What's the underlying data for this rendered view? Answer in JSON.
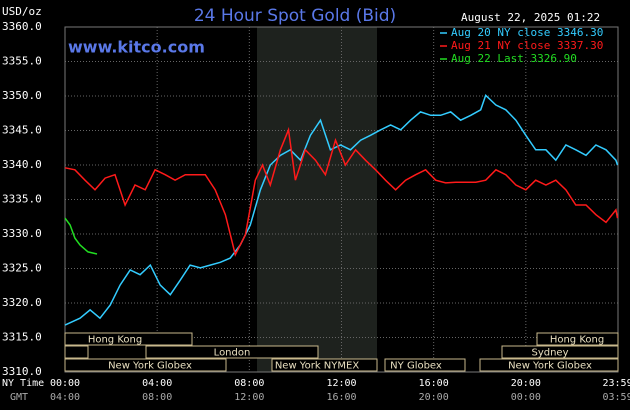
{
  "chart_data": {
    "type": "line",
    "title": "24 Hour Spot Gold (Bid)",
    "website": "www.kitco.com",
    "timestamp": "August 22, 2025 01:22",
    "y_axis_label": "USD/oz",
    "x_axis_label": "NY Time",
    "x2_axis_label": "GMT",
    "xlim": [
      0,
      24
    ],
    "ylim": [
      3310,
      3360
    ],
    "xticks": [
      {
        "value": 0,
        "label": "00:00"
      },
      {
        "value": 4,
        "label": "04:00"
      },
      {
        "value": 8,
        "label": "08:00"
      },
      {
        "value": 12,
        "label": "12:00"
      },
      {
        "value": 16,
        "label": "16:00"
      },
      {
        "value": 20,
        "label": "20:00"
      },
      {
        "value": 23.98,
        "label": "23:59"
      }
    ],
    "x2ticks": [
      {
        "value": 0,
        "label": "04:00"
      },
      {
        "value": 4,
        "label": "08:00"
      },
      {
        "value": 8,
        "label": "12:00"
      },
      {
        "value": 12,
        "label": "16:00"
      },
      {
        "value": 16,
        "label": "20:00"
      },
      {
        "value": 20,
        "label": "00:00"
      },
      {
        "value": 23.98,
        "label": "03:59"
      }
    ],
    "yticks": [
      {
        "value": 3310,
        "label": "3310.0"
      },
      {
        "value": 3315,
        "label": "3315.0"
      },
      {
        "value": 3320,
        "label": "3320.0"
      },
      {
        "value": 3325,
        "label": "3325.0"
      },
      {
        "value": 3330,
        "label": "3330.0"
      },
      {
        "value": 3335,
        "label": "3335.0"
      },
      {
        "value": 3340,
        "label": "3340.0"
      },
      {
        "value": 3345,
        "label": "3345.0"
      },
      {
        "value": 3350,
        "label": "3350.0"
      },
      {
        "value": 3355,
        "label": "3355.0"
      },
      {
        "value": 3360,
        "label": "3360.0"
      }
    ],
    "grid": true,
    "legend": "top-right",
    "sessions": [
      "Hong Kong",
      "Hong Kong",
      "London",
      "Sydney",
      "New York Globex",
      "New York NYMEX",
      "NY Globex",
      "New York Globex"
    ],
    "series": [
      {
        "name": "Aug 20 NY close 3346.30",
        "color": "#33ccff",
        "x": [
          0,
          0.65,
          1.09,
          1.52,
          1.96,
          2.39,
          2.83,
          3.26,
          3.7,
          4.13,
          4.57,
          5,
          5.43,
          5.87,
          6.3,
          6.74,
          7.17,
          7.61,
          8.04,
          8.48,
          8.91,
          9.35,
          9.78,
          10.22,
          10.65,
          11.09,
          11.52,
          11.96,
          12.39,
          12.83,
          13.26,
          13.7,
          14.13,
          14.57,
          15,
          15.43,
          15.87,
          16.3,
          16.74,
          17.17,
          17.61,
          18.04,
          18.26,
          18.7,
          19.13,
          19.57,
          20,
          20.43,
          20.87,
          21.3,
          21.74,
          22.17,
          22.61,
          23.04,
          23.48,
          23.91,
          23.98
        ],
        "values": [
          3316.8,
          3317.8,
          3319.0,
          3317.8,
          3319.7,
          3322.6,
          3324.8,
          3324.1,
          3325.5,
          3322.6,
          3321.2,
          3323.3,
          3325.5,
          3325.1,
          3325.5,
          3325.9,
          3326.5,
          3328.4,
          3331.3,
          3336.4,
          3340.0,
          3341.4,
          3342.2,
          3340.7,
          3344.3,
          3346.5,
          3342.2,
          3342.9,
          3342.2,
          3343.6,
          3344.3,
          3345.1,
          3345.8,
          3345.1,
          3346.5,
          3347.7,
          3347.2,
          3347.2,
          3347.7,
          3346.5,
          3347.2,
          3348.0,
          3350.1,
          3348.7,
          3348.0,
          3346.5,
          3344.3,
          3342.2,
          3342.2,
          3340.7,
          3342.9,
          3342.2,
          3341.4,
          3342.9,
          3342.2,
          3340.7,
          3340.0
        ]
      },
      {
        "name": "Aug 21 NY close 3337.30",
        "color": "#ff1a1a",
        "x": [
          0,
          0.43,
          0.87,
          1.3,
          1.74,
          2.17,
          2.61,
          3.04,
          3.48,
          3.91,
          4.35,
          4.78,
          5.22,
          5.65,
          6.09,
          6.52,
          6.96,
          7.39,
          7.83,
          8.26,
          8.57,
          8.91,
          9.35,
          9.7,
          10,
          10.43,
          10.87,
          11.3,
          11.74,
          12.17,
          12.61,
          13.04,
          13.48,
          13.91,
          14.35,
          14.78,
          15.22,
          15.65,
          16.09,
          16.52,
          16.96,
          17.39,
          17.83,
          18.26,
          18.7,
          19.13,
          19.57,
          20,
          20.43,
          20.87,
          21.3,
          21.74,
          22.17,
          22.61,
          23.04,
          23.48,
          23.91,
          23.98
        ],
        "values": [
          3339.6,
          3339.3,
          3337.8,
          3336.4,
          3338.1,
          3338.6,
          3334.2,
          3337.1,
          3336.4,
          3339.3,
          3338.6,
          3337.8,
          3338.6,
          3338.6,
          3338.6,
          3336.4,
          3332.8,
          3327.0,
          3329.9,
          3337.8,
          3340.0,
          3337.1,
          3342.2,
          3345.1,
          3337.8,
          3342.2,
          3340.7,
          3338.6,
          3343.6,
          3340.0,
          3342.2,
          3340.7,
          3339.3,
          3337.8,
          3336.4,
          3337.8,
          3338.6,
          3339.3,
          3337.8,
          3337.4,
          3337.5,
          3337.5,
          3337.5,
          3337.8,
          3339.3,
          3338.6,
          3337.1,
          3336.4,
          3337.8,
          3337.1,
          3337.8,
          3336.4,
          3334.2,
          3334.2,
          3332.8,
          3331.7,
          3333.5,
          3332.3
        ]
      },
      {
        "name": "Aug 22 Last 3326.90",
        "color": "#22dd22",
        "x": [
          0,
          0.22,
          0.43,
          0.65,
          1.0,
          1.39
        ],
        "values": [
          3332.3,
          3331.3,
          3329.4,
          3328.4,
          3327.4,
          3327.1
        ]
      }
    ]
  }
}
